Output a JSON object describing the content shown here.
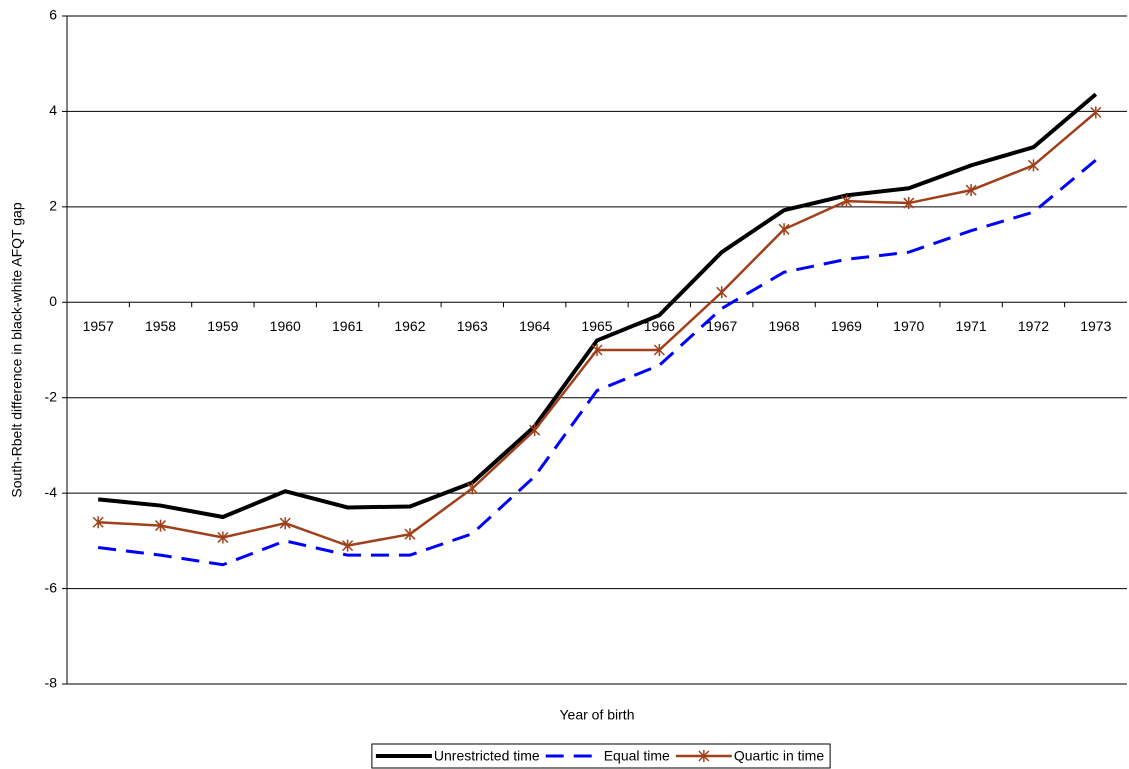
{
  "chart_data": {
    "type": "line",
    "x_label": "Year of birth",
    "y_label": "South-Rbelt difference in black-white AFQT gap",
    "categories": [
      "1957",
      "1958",
      "1959",
      "1960",
      "1961",
      "1962",
      "1963",
      "1964",
      "1965",
      "1966",
      "1967",
      "1968",
      "1969",
      "1970",
      "1971",
      "1972",
      "1973"
    ],
    "ylim": [
      -8,
      6
    ],
    "yticks": [
      -8,
      -6,
      -4,
      -2,
      0,
      2,
      4,
      6
    ],
    "grid": true,
    "legend": "bottom",
    "series": [
      {
        "name": "Unrestricted time",
        "color": "#000000",
        "style": "solid",
        "values": [
          -4.13,
          -4.26,
          -4.5,
          -3.96,
          -4.3,
          -4.28,
          -3.78,
          -2.6,
          -0.8,
          -0.27,
          1.05,
          1.93,
          2.24,
          2.39,
          2.87,
          3.25,
          4.36
        ]
      },
      {
        "name": "Equal time",
        "color": "#0000ff",
        "style": "dashed",
        "values": [
          -5.14,
          -5.3,
          -5.5,
          -5.0,
          -5.3,
          -5.3,
          -4.85,
          -3.65,
          -1.85,
          -1.32,
          -0.13,
          0.63,
          0.9,
          1.05,
          1.5,
          1.89,
          2.98
        ]
      },
      {
        "name": "Quartic in time",
        "color": "#a0401a",
        "style": "asterisk",
        "values": [
          -4.61,
          -4.68,
          -4.93,
          -4.63,
          -5.1,
          -4.86,
          -3.9,
          -2.68,
          -1.0,
          -1.0,
          0.21,
          1.53,
          2.12,
          2.08,
          2.35,
          2.87,
          3.98
        ]
      }
    ]
  }
}
